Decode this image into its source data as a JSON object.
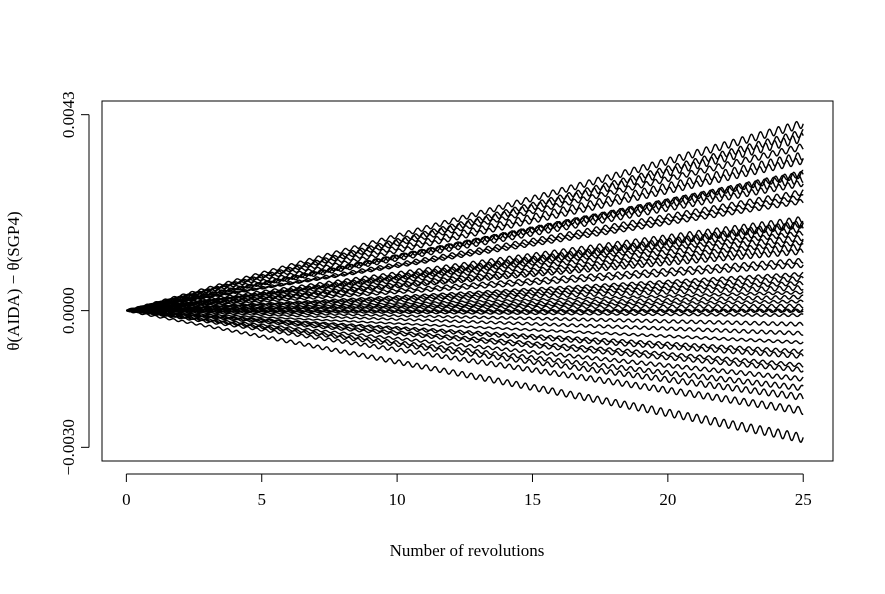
{
  "chart_data": {
    "type": "line",
    "title": "",
    "xlabel": "Number of revolutions",
    "ylabel": "θ(AIDA) − θ(SGP4)",
    "xlim": [
      -0.9,
      26.1
    ],
    "ylim": [
      -0.0033,
      0.0046
    ],
    "x_ticks": [
      0,
      5,
      10,
      15,
      20,
      25
    ],
    "x_tick_labels": [
      "0",
      "5",
      "10",
      "15",
      "20",
      "25"
    ],
    "y_ticks": [
      -0.003,
      0.0,
      0.0043
    ],
    "y_tick_labels": [
      "−0.0030",
      "0.0000",
      "0.0043"
    ],
    "grid": false,
    "legend": "none",
    "line_color": "#000000",
    "x_range": [
      0,
      25
    ],
    "oscillations_per_revolution": 3,
    "series": [
      {
        "final": 0.0041,
        "amplitude": 9e-05
      },
      {
        "final": 0.0039,
        "amplitude": 8e-05
      },
      {
        "final": 0.0038,
        "amplitude": 0.0001
      },
      {
        "final": 0.0036,
        "amplitude": 7e-05
      },
      {
        "final": 0.0034,
        "amplitude": 9e-05
      },
      {
        "final": 0.0033,
        "amplitude": 8e-05
      },
      {
        "final": 0.003,
        "amplitude": 8e-05
      },
      {
        "final": 0.003,
        "amplitude": 6e-05
      },
      {
        "final": 0.0029,
        "amplitude": 9e-05
      },
      {
        "final": 0.0028,
        "amplitude": 7e-05
      },
      {
        "final": 0.0026,
        "amplitude": 6e-05
      },
      {
        "final": 0.0025,
        "amplitude": 5e-05
      },
      {
        "final": 0.0024,
        "amplitude": 5e-05
      },
      {
        "final": 0.002,
        "amplitude": 7e-05
      },
      {
        "final": 0.0019,
        "amplitude": 8e-05
      },
      {
        "final": 0.0019,
        "amplitude": 6e-05
      },
      {
        "final": 0.0018,
        "amplitude": 7e-05
      },
      {
        "final": 0.0017,
        "amplitude": 5e-05
      },
      {
        "final": 0.0016,
        "amplitude": 6e-05
      },
      {
        "final": 0.0015,
        "amplitude": 5e-05
      },
      {
        "final": 0.0014,
        "amplitude": 7e-05
      },
      {
        "final": 0.0013,
        "amplitude": 6e-05
      },
      {
        "final": 0.0011,
        "amplitude": 5e-05
      },
      {
        "final": 0.001,
        "amplitude": 5e-05
      },
      {
        "final": 0.0008,
        "amplitude": 4e-05
      },
      {
        "final": 0.0007,
        "amplitude": 5e-05
      },
      {
        "final": 0.0006,
        "amplitude": 4e-05
      },
      {
        "final": 0.0005,
        "amplitude": 5e-05
      },
      {
        "final": 0.0004,
        "amplitude": 3e-05
      },
      {
        "final": 0.0003,
        "amplitude": 4e-05
      },
      {
        "final": 0.0002,
        "amplitude": 3e-05
      },
      {
        "final": 0.0001,
        "amplitude": 4e-05
      },
      {
        "final": 0.0,
        "amplitude": 3e-05
      },
      {
        "final": 0.0,
        "amplitude": 4e-05
      },
      {
        "final": -0.0001,
        "amplitude": 3e-05
      },
      {
        "final": -0.0003,
        "amplitude": 4e-05
      },
      {
        "final": -0.0005,
        "amplitude": 4e-05
      },
      {
        "final": -0.0007,
        "amplitude": 3e-05
      },
      {
        "final": -0.0009,
        "amplitude": 4e-05
      },
      {
        "final": -0.001,
        "amplitude": 5e-05
      },
      {
        "final": -0.0012,
        "amplitude": 4e-05
      },
      {
        "final": -0.0013,
        "amplitude": 5e-05
      },
      {
        "final": -0.0015,
        "amplitude": 5e-05
      },
      {
        "final": -0.0017,
        "amplitude": 6e-05
      },
      {
        "final": -0.0019,
        "amplitude": 7e-05
      },
      {
        "final": -0.0022,
        "amplitude": 8e-05
      },
      {
        "final": -0.0028,
        "amplitude": 0.0001
      }
    ]
  }
}
